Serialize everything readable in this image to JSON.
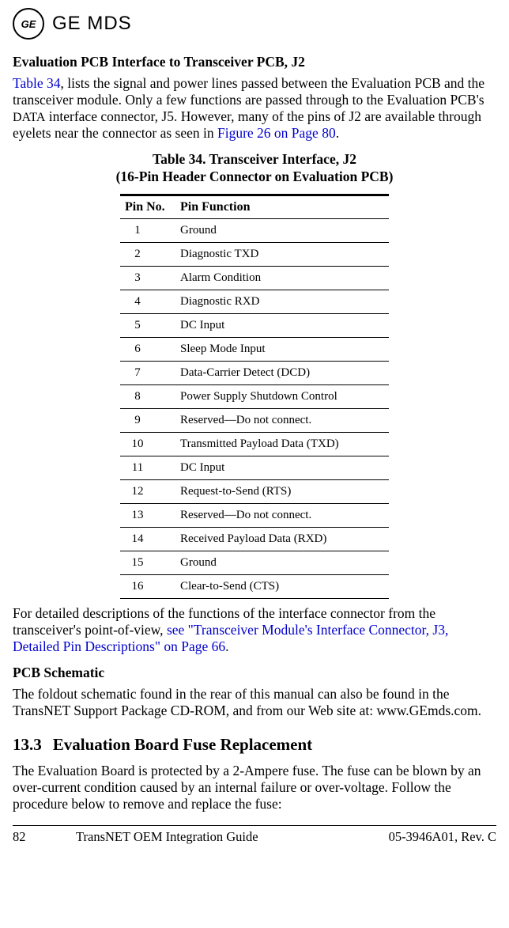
{
  "logo": {
    "monogram": "GE",
    "brand": "GE MDS"
  },
  "h1": "Evaluation PCB Interface to Transceiver PCB, J2",
  "p1": {
    "ref1": "Table 34",
    "mid1": ", lists the signal and power lines passed between the Evaluation PCB and the transceiver module. Only a few functions are passed through to the Evaluation PCB's ",
    "data_word": "DATA",
    "mid2": " interface connector, J5. However, many of the pins of J2 are available through eyelets near the connector as seen in ",
    "ref2": "Figure 26 on Page 80",
    "end": "."
  },
  "table": {
    "caption_l1": "Table 34. Transceiver Interface, J2",
    "caption_l2": "(16-Pin Header Connector on Evaluation PCB)",
    "col1": "Pin No.",
    "col2": "Pin Function",
    "rows": [
      {
        "n": "1",
        "f": "Ground"
      },
      {
        "n": "2",
        "f": "Diagnostic TXD"
      },
      {
        "n": "3",
        "f": "Alarm Condition"
      },
      {
        "n": "4",
        "f": "Diagnostic RXD"
      },
      {
        "n": "5",
        "f": "DC Input"
      },
      {
        "n": "6",
        "f": "Sleep Mode Input"
      },
      {
        "n": "7",
        "f": "Data-Carrier Detect (DCD)"
      },
      {
        "n": "8",
        "f": "Power Supply Shutdown Control"
      },
      {
        "n": "9",
        "f": "Reserved—Do not connect."
      },
      {
        "n": "10",
        "f": "Transmitted Payload Data (TXD)"
      },
      {
        "n": "11",
        "f": "DC Input"
      },
      {
        "n": "12",
        "f": "Request-to-Send (RTS)"
      },
      {
        "n": "13",
        "f": "Reserved—Do not connect."
      },
      {
        "n": "14",
        "f": "Received Payload Data (RXD)"
      },
      {
        "n": "15",
        "f": "Ground"
      },
      {
        "n": "16",
        "f": "Clear-to-Send (CTS)"
      }
    ]
  },
  "p2": {
    "start": "For detailed descriptions of the functions of the interface connector from the transceiver's point-of-view, ",
    "ref": "see \"Transceiver Module's Interface Connector, J3, Detailed Pin Descriptions\" on Page 66",
    "end": "."
  },
  "h2": "PCB Schematic",
  "p3": "The foldout schematic found in the rear of this manual can also be found in the TransNET Support Package CD-ROM, and from our Web site at: www.GEmds.com.",
  "sec": {
    "num": "13.3",
    "title": "Evaluation Board Fuse Replacement"
  },
  "p4": "The Evaluation Board is protected by a 2-Ampere fuse. The fuse can be blown by an over-current condition caused by an internal failure or over-voltage. Follow the procedure below to remove and replace the fuse:",
  "footer": {
    "page": "82",
    "title": "TransNET OEM Integration Guide",
    "rev": "05-3946A01, Rev. C"
  },
  "colors": {
    "link": "#0000cc",
    "text": "#000000",
    "rule": "#000000"
  }
}
